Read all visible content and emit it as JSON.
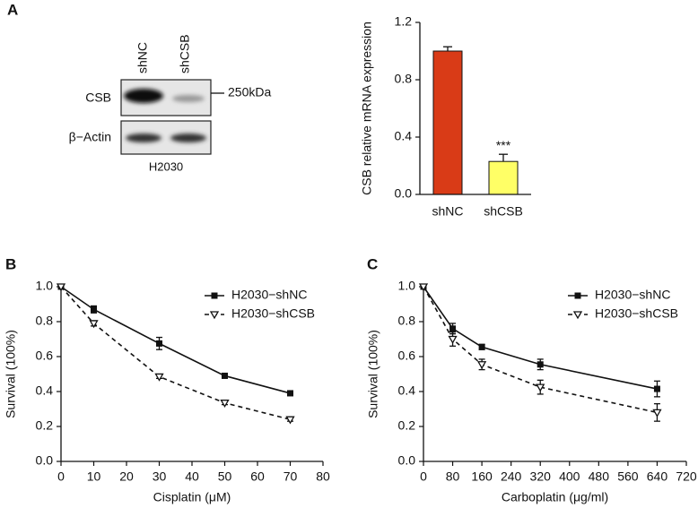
{
  "panels": {
    "a": "A",
    "b": "B",
    "c": "C"
  },
  "blot": {
    "lanes": [
      "shNC",
      "shCSB"
    ],
    "rows": [
      "CSB",
      "β−Actin"
    ],
    "marker": "250kDa",
    "cell_line": "H2030"
  },
  "chart_data": [
    {
      "type": "bar",
      "ylabel": "CSB relative mRNA expression",
      "categories": [
        "shNC",
        "shCSB"
      ],
      "values": [
        1.0,
        0.23
      ],
      "errors": [
        0.03,
        0.05
      ],
      "colors": [
        "#d93b17",
        "#ffff66"
      ],
      "significance": [
        null,
        "***"
      ],
      "ylim": [
        0,
        1.2
      ],
      "yticks": [
        {
          "value": 0,
          "label": "0.0"
        },
        0.4,
        0.8,
        1.2
      ]
    },
    {
      "type": "line",
      "xlabel": "Cisplatin (μM)",
      "ylabel": "Survival (100%)",
      "legend": "upper right",
      "x": [
        0,
        10,
        30,
        50,
        70
      ],
      "series": [
        {
          "name": "H2030−shNC",
          "color": "#111111",
          "marker": "square",
          "dashed": false,
          "values": [
            1.0,
            0.87,
            0.675,
            0.49,
            0.39
          ],
          "errors": [
            0,
            0.02,
            0.035,
            0.01,
            0.01
          ]
        },
        {
          "name": "H2030−shCSB",
          "color": "#111111",
          "marker": "open-triangle-down",
          "dashed": true,
          "values": [
            1.0,
            0.79,
            0.485,
            0.335,
            0.24
          ],
          "errors": [
            0,
            0.015,
            0.01,
            0.01,
            0.01
          ]
        }
      ],
      "xlim": [
        0,
        80
      ],
      "xticks": [
        0,
        10,
        20,
        30,
        40,
        50,
        60,
        70,
        80
      ],
      "ylim": [
        0,
        1.0
      ],
      "yticks": [
        {
          "value": 0,
          "label": "0.0"
        },
        0.2,
        0.4,
        0.6,
        0.8,
        {
          "value": 1.0,
          "label": "1.0"
        }
      ]
    },
    {
      "type": "line",
      "xlabel": "Carboplatin (μg/ml)",
      "ylabel": "Survival (100%)",
      "legend": "upper right",
      "x": [
        0,
        80,
        160,
        320,
        640
      ],
      "series": [
        {
          "name": "H2030−shNC",
          "color": "#111111",
          "marker": "square",
          "dashed": false,
          "values": [
            1.0,
            0.76,
            0.655,
            0.555,
            0.415
          ],
          "errors": [
            0,
            0.03,
            0.015,
            0.03,
            0.045
          ]
        },
        {
          "name": "H2030−shCSB",
          "color": "#111111",
          "marker": "open-triangle-down",
          "dashed": true,
          "values": [
            1.0,
            0.7,
            0.555,
            0.425,
            0.28
          ],
          "errors": [
            0,
            0.04,
            0.03,
            0.04,
            0.05
          ]
        }
      ],
      "xlim": [
        0,
        720
      ],
      "xticks": [
        0,
        80,
        160,
        240,
        320,
        400,
        480,
        560,
        640,
        720
      ],
      "ylim": [
        0,
        1.0
      ],
      "yticks": [
        {
          "value": 0,
          "label": "0.0"
        },
        0.2,
        0.4,
        0.6,
        0.8,
        {
          "value": 1.0,
          "label": "1.0"
        }
      ]
    }
  ]
}
